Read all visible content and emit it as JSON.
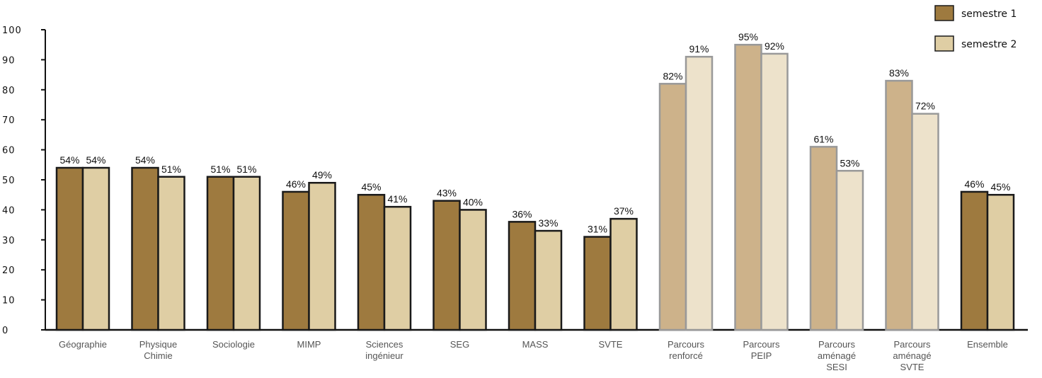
{
  "chart_data": {
    "type": "bar",
    "categories": [
      [
        "Géographie"
      ],
      [
        "Physique",
        "Chimie"
      ],
      [
        "Sociologie"
      ],
      [
        "MIMP"
      ],
      [
        "Sciences",
        "ingénieur"
      ],
      [
        "SEG"
      ],
      [
        "MASS"
      ],
      [
        "SVTE"
      ],
      [
        "Parcours",
        "renforcé"
      ],
      [
        "Parcours",
        "PEIP"
      ],
      [
        "Parcours",
        "aménagé",
        "SESI"
      ],
      [
        "Parcours",
        "aménagé",
        "SVTE"
      ],
      [
        "Ensemble"
      ]
    ],
    "series": [
      {
        "name": "semestre 1",
        "values": [
          54,
          54,
          51,
          46,
          45,
          43,
          36,
          31,
          82,
          95,
          61,
          83,
          46
        ],
        "labels": [
          "54%",
          "54%",
          "51%",
          "46%",
          "45%",
          "43%",
          "36%",
          "31%",
          "82%",
          "95%",
          "61%",
          "83%",
          "46%"
        ],
        "color": "#9e7a3f",
        "light_color": "#cdb28a"
      },
      {
        "name": "semestre 2",
        "values": [
          54,
          51,
          51,
          49,
          41,
          40,
          33,
          37,
          91,
          92,
          53,
          72,
          45
        ],
        "labels": [
          "54%",
          "51%",
          "51%",
          "49%",
          "41%",
          "40%",
          "33%",
          "37%",
          "91%",
          "92%",
          "53%",
          "72%",
          "45%"
        ],
        "color": "#dfcea4",
        "light_color": "#ede2cb"
      }
    ],
    "highlight_categories": [
      8,
      9,
      10,
      11
    ],
    "ylim": [
      0,
      100
    ],
    "yticks": [
      "0",
      "10",
      "20",
      "30",
      "40",
      "50",
      "60",
      "70",
      "80",
      "90",
      "100"
    ],
    "grid": false,
    "legend": "top-right",
    "title": "",
    "xlabel": "",
    "ylabel": ""
  }
}
